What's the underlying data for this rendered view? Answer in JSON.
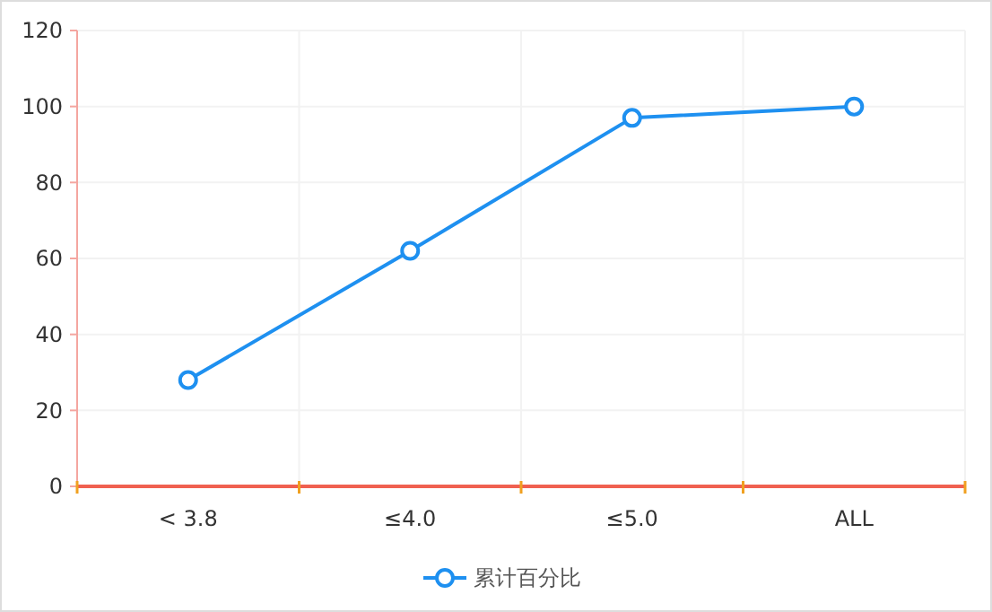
{
  "chart_data": {
    "type": "line",
    "categories": [
      "< 3.8",
      "≤4.0",
      "≤5.0",
      "ALL"
    ],
    "series": [
      {
        "name": "累计百分比",
        "color": "#1e90f0",
        "values": [
          28,
          62,
          97,
          100
        ]
      }
    ],
    "ylim": [
      0,
      120
    ],
    "yticks": [
      0,
      20,
      40,
      60,
      80,
      100,
      120
    ],
    "grid": true,
    "legend": "bottom",
    "marker": "circle",
    "line_style": "solid"
  }
}
